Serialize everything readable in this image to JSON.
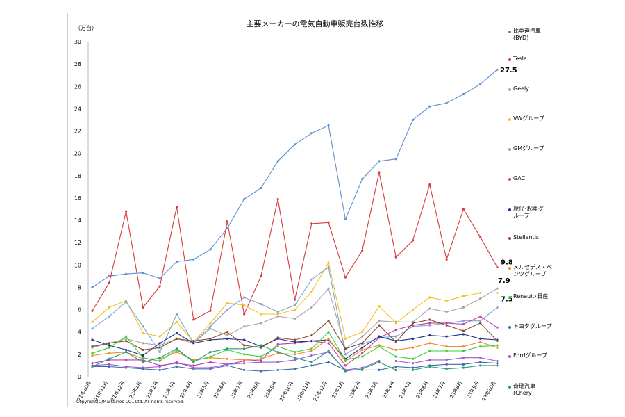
{
  "chart_data": {
    "type": "line",
    "title": "主要メーカーの電気自動車販売台数推移",
    "ylabel": "（万台）",
    "ylim": [
      0,
      30
    ],
    "yticks": [
      0,
      2,
      4,
      6,
      8,
      10,
      12,
      14,
      16,
      18,
      20,
      22,
      24,
      26,
      28,
      30
    ],
    "grid": false,
    "legend_position": "right",
    "categories": [
      "21年10月",
      "21年11月",
      "21年12月",
      "22年1月",
      "22年2月",
      "22年3月",
      "22年4月",
      "22年5月",
      "22年6月",
      "22年7月",
      "22年8月",
      "22年9月",
      "22年10月",
      "22年11月",
      "22年12月",
      "23年1月",
      "23年2月",
      "23年3月",
      "23年4月",
      "23年5月",
      "23年6月",
      "23年7月",
      "23年8月",
      "23年9月",
      "23年10月"
    ],
    "series": [
      {
        "name": "比亜迪汽車\n(BYD)",
        "color": "#5b8fd0",
        "values": [
          8.0,
          9.0,
          9.2,
          9.3,
          8.8,
          10.3,
          10.5,
          11.4,
          13.3,
          15.9,
          16.9,
          19.3,
          20.8,
          21.8,
          22.5,
          14.1,
          17.7,
          19.3,
          19.5,
          23.0,
          24.2,
          24.5,
          25.3,
          26.2,
          27.5
        ]
      },
      {
        "name": "Tesla",
        "color": "#d93838",
        "values": [
          5.9,
          8.4,
          14.8,
          6.2,
          8.1,
          15.2,
          5.1,
          5.9,
          13.9,
          5.6,
          9.0,
          15.9,
          6.9,
          13.7,
          13.8,
          8.9,
          11.3,
          18.3,
          10.7,
          12.2,
          17.2,
          10.5,
          15.0,
          12.5,
          9.8
        ]
      },
      {
        "name": "Geely",
        "color": "#a6a6a6",
        "values": [
          2.6,
          3.0,
          3.4,
          3.0,
          2.8,
          3.4,
          3.0,
          4.3,
          3.7,
          4.5,
          4.8,
          5.4,
          5.2,
          6.2,
          7.9,
          2.5,
          3.6,
          5.0,
          4.9,
          4.9,
          6.1,
          5.8,
          6.2,
          7.0,
          7.9
        ]
      },
      {
        "name": "VWグループ",
        "color": "#f5c020",
        "values": [
          4.9,
          6.2,
          6.8,
          3.9,
          3.6,
          4.9,
          3.1,
          4.8,
          6.6,
          6.4,
          5.6,
          5.6,
          6.0,
          7.6,
          10.2,
          3.4,
          4.0,
          6.3,
          4.8,
          6.0,
          7.1,
          6.8,
          7.2,
          7.5,
          7.5
        ]
      },
      {
        "name": "GMグループ",
        "color": "#7aa6d8",
        "values": [
          4.3,
          5.4,
          6.7,
          4.5,
          2.2,
          5.6,
          3.0,
          4.5,
          6.0,
          7.1,
          6.5,
          5.8,
          6.4,
          8.7,
          9.8,
          2.0,
          2.9,
          3.5,
          3.6,
          4.5,
          4.6,
          4.8,
          5.0,
          5.0,
          6.2
        ]
      },
      {
        "name": "GAC",
        "color": "#c23aa8",
        "values": [
          1.2,
          1.5,
          1.5,
          1.5,
          1.0,
          1.2,
          1.0,
          1.3,
          1.1,
          1.4,
          1.5,
          2.9,
          3.0,
          3.2,
          3.0,
          1.0,
          2.1,
          3.5,
          4.2,
          4.6,
          4.8,
          4.8,
          4.7,
          5.4,
          4.4
        ]
      },
      {
        "name": "現代･起亜グ\nループ",
        "color": "#1f2f8a",
        "values": [
          3.3,
          2.8,
          2.4,
          1.9,
          3.0,
          3.9,
          3.0,
          3.3,
          3.4,
          3.3,
          2.7,
          3.4,
          3.1,
          3.2,
          3.3,
          1.6,
          2.6,
          3.6,
          3.2,
          3.4,
          3.7,
          3.6,
          3.8,
          3.4,
          3.3
        ]
      },
      {
        "name": "Stellantis",
        "color": "#8b4a2a",
        "values": [
          2.7,
          3.0,
          3.2,
          2.4,
          2.6,
          3.4,
          3.2,
          3.4,
          4.0,
          2.8,
          2.6,
          3.5,
          3.3,
          3.7,
          5.0,
          2.5,
          3.0,
          4.6,
          3.1,
          4.8,
          5.1,
          4.6,
          4.1,
          4.8,
          3.2
        ]
      },
      {
        "name": "メルセデス・ベ\nンツグループ",
        "color": "#f08c28",
        "values": [
          1.9,
          2.1,
          2.2,
          1.6,
          1.6,
          2.2,
          1.5,
          1.7,
          1.6,
          1.5,
          1.6,
          2.1,
          2.0,
          2.3,
          3.4,
          1.4,
          2.4,
          2.8,
          2.4,
          2.6,
          3.0,
          2.7,
          2.7,
          3.1,
          2.6
        ]
      },
      {
        "name": "Renault･日産",
        "color": "#3ccf3c",
        "values": [
          2.1,
          2.6,
          3.6,
          1.7,
          1.4,
          2.4,
          1.4,
          1.8,
          2.4,
          2.0,
          1.8,
          2.7,
          2.2,
          2.5,
          4.0,
          1.5,
          1.8,
          2.7,
          1.8,
          1.6,
          2.3,
          2.3,
          2.3,
          2.7,
          2.8
        ]
      },
      {
        "name": "トヨタグループ",
        "color": "#3a6aa8",
        "values": [
          0.9,
          0.9,
          0.8,
          0.7,
          0.6,
          0.9,
          0.7,
          0.7,
          1.0,
          0.6,
          0.5,
          0.6,
          0.7,
          1.0,
          1.3,
          0.6,
          0.6,
          0.6,
          0.9,
          0.8,
          1.0,
          1.1,
          1.1,
          1.3,
          1.2
        ]
      },
      {
        "name": "Fordグループ",
        "color": "#9b59d6",
        "values": [
          1.0,
          1.1,
          0.9,
          0.8,
          0.9,
          1.3,
          0.8,
          0.8,
          1.1,
          1.2,
          1.3,
          1.3,
          1.5,
          1.9,
          2.2,
          0.6,
          0.8,
          1.4,
          1.4,
          1.2,
          1.5,
          1.5,
          1.7,
          1.7,
          1.4
        ]
      },
      {
        "name": "奇瑞汽車\n(Chery)",
        "color": "#2a9a7a",
        "values": [
          0.9,
          1.6,
          2.2,
          1.3,
          1.7,
          2.5,
          1.3,
          2.2,
          2.5,
          2.5,
          2.8,
          2.2,
          1.7,
          1.3,
          2.3,
          0.5,
          0.7,
          1.3,
          0.6,
          0.6,
          0.9,
          0.7,
          0.8,
          1.0,
          1.0
        ]
      }
    ],
    "annotations": [
      {
        "text": "27.5",
        "series": 0,
        "index": 24
      },
      {
        "text": "9.8",
        "series": 1,
        "index": 24
      },
      {
        "text": "7.9",
        "series": 2,
        "index": 24
      },
      {
        "text": "7.5",
        "series": 3,
        "index": 24
      }
    ]
  },
  "copyright": "Copyright(C)MarkLines CO., Ltd. All rights reserved."
}
